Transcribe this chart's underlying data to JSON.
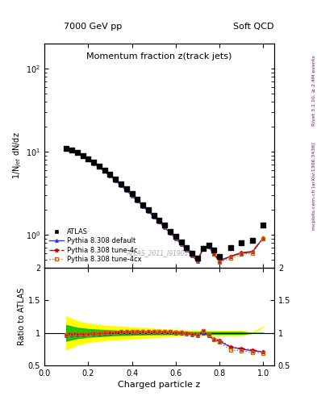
{
  "title_top_left": "7000 GeV pp",
  "title_top_right": "Soft QCD",
  "plot_title": "Momentum fraction z(track jets)",
  "ylabel_main": "1/N$_{jet}$ dN/dz",
  "ylabel_ratio": "Ratio to ATLAS",
  "xlabel": "Charged particle z",
  "right_label_top": "Rivet 3.1.10, ≥ 2.4M events",
  "right_label_bottom": "mcplots.cern.ch [arXiv:1306.3436]",
  "watermark": "ATLAS_2011_I919017",
  "z_values": [
    0.1,
    0.125,
    0.15,
    0.175,
    0.2,
    0.225,
    0.25,
    0.275,
    0.3,
    0.325,
    0.35,
    0.375,
    0.4,
    0.425,
    0.45,
    0.475,
    0.5,
    0.525,
    0.55,
    0.575,
    0.6,
    0.625,
    0.65,
    0.675,
    0.7,
    0.725,
    0.75,
    0.775,
    0.8,
    0.85,
    0.9,
    0.95,
    1.0
  ],
  "atlas_data": [
    11.0,
    10.5,
    9.8,
    9.0,
    8.2,
    7.4,
    6.7,
    6.0,
    5.3,
    4.7,
    4.1,
    3.6,
    3.1,
    2.7,
    2.3,
    2.0,
    1.7,
    1.5,
    1.3,
    1.1,
    0.95,
    0.82,
    0.7,
    0.6,
    0.52,
    0.68,
    0.75,
    0.65,
    0.55,
    0.7,
    0.8,
    0.85,
    1.3
  ],
  "pythia_default": [
    10.8,
    10.3,
    9.6,
    8.8,
    8.0,
    7.2,
    6.5,
    5.8,
    5.1,
    4.5,
    3.9,
    3.4,
    2.95,
    2.57,
    2.2,
    1.9,
    1.65,
    1.42,
    1.22,
    1.05,
    0.9,
    0.77,
    0.66,
    0.56,
    0.48,
    0.68,
    0.72,
    0.58,
    0.48,
    0.55,
    0.6,
    0.62,
    0.92
  ],
  "pythia_tune4c": [
    10.9,
    10.4,
    9.7,
    8.9,
    8.1,
    7.3,
    6.6,
    5.9,
    5.2,
    4.6,
    4.0,
    3.5,
    3.02,
    2.62,
    2.25,
    1.95,
    1.68,
    1.45,
    1.25,
    1.07,
    0.92,
    0.79,
    0.67,
    0.57,
    0.49,
    0.7,
    0.73,
    0.59,
    0.49,
    0.55,
    0.61,
    0.63,
    0.92
  ],
  "pythia_tune4cx": [
    10.9,
    10.4,
    9.7,
    8.9,
    8.1,
    7.3,
    6.6,
    5.9,
    5.2,
    4.6,
    4.0,
    3.5,
    3.02,
    2.62,
    2.25,
    1.95,
    1.68,
    1.45,
    1.25,
    1.07,
    0.92,
    0.79,
    0.67,
    0.57,
    0.49,
    0.7,
    0.73,
    0.58,
    0.47,
    0.52,
    0.58,
    0.6,
    0.9
  ],
  "ratio_default": [
    0.96,
    0.972,
    0.975,
    0.978,
    0.982,
    0.988,
    0.99,
    0.995,
    1.0,
    1.005,
    1.008,
    1.01,
    1.012,
    1.013,
    1.013,
    1.012,
    1.011,
    1.01,
    1.008,
    1.005,
    1.0,
    0.995,
    0.985,
    0.975,
    0.96,
    1.0,
    0.96,
    0.892,
    0.873,
    0.786,
    0.75,
    0.729,
    0.708
  ],
  "ratio_tune4c": [
    0.97,
    0.982,
    0.985,
    0.988,
    0.99,
    0.995,
    0.998,
    1.005,
    1.01,
    1.015,
    1.018,
    1.02,
    1.022,
    1.023,
    1.024,
    1.023,
    1.022,
    1.021,
    1.02,
    1.018,
    1.015,
    1.01,
    1.0,
    0.99,
    0.975,
    1.03,
    0.973,
    0.908,
    0.891,
    0.786,
    0.763,
    0.741,
    0.708
  ],
  "ratio_tune4cx": [
    0.97,
    0.982,
    0.985,
    0.988,
    0.99,
    0.995,
    0.998,
    1.005,
    1.01,
    1.015,
    1.018,
    1.02,
    1.022,
    1.023,
    1.024,
    1.023,
    1.022,
    1.021,
    1.02,
    1.018,
    1.015,
    1.01,
    1.0,
    0.99,
    0.975,
    1.03,
    0.973,
    0.892,
    0.855,
    0.743,
    0.725,
    0.706,
    0.692
  ],
  "yellow_band_lo": [
    0.75,
    0.78,
    0.82,
    0.84,
    0.86,
    0.87,
    0.88,
    0.89,
    0.895,
    0.9,
    0.905,
    0.91,
    0.915,
    0.92,
    0.925,
    0.93,
    0.935,
    0.94,
    0.945,
    0.95,
    0.955,
    0.96,
    0.965,
    0.965,
    0.965,
    0.965,
    0.965,
    0.965,
    0.965,
    0.965,
    0.965,
    1.0,
    1.1
  ],
  "yellow_band_hi": [
    1.25,
    1.22,
    1.18,
    1.16,
    1.14,
    1.13,
    1.12,
    1.11,
    1.105,
    1.1,
    1.095,
    1.09,
    1.085,
    1.08,
    1.075,
    1.07,
    1.065,
    1.06,
    1.055,
    1.05,
    1.045,
    1.04,
    1.035,
    1.035,
    1.035,
    1.035,
    1.035,
    1.035,
    1.035,
    1.035,
    1.035,
    1.0,
    1.1
  ],
  "green_band_lo": [
    0.88,
    0.9,
    0.92,
    0.93,
    0.94,
    0.945,
    0.95,
    0.955,
    0.96,
    0.965,
    0.968,
    0.97,
    0.972,
    0.975,
    0.977,
    0.978,
    0.979,
    0.98,
    0.981,
    0.982,
    0.983,
    0.984,
    0.985,
    0.985,
    0.985,
    0.985,
    0.985,
    0.985,
    0.985,
    0.985,
    0.985,
    1.0,
    1.0
  ],
  "green_band_hi": [
    1.12,
    1.1,
    1.08,
    1.07,
    1.06,
    1.055,
    1.05,
    1.045,
    1.04,
    1.035,
    1.032,
    1.03,
    1.028,
    1.025,
    1.023,
    1.022,
    1.021,
    1.02,
    1.019,
    1.018,
    1.017,
    1.016,
    1.015,
    1.015,
    1.015,
    1.015,
    1.015,
    1.015,
    1.015,
    1.015,
    1.015,
    1.0,
    1.0
  ],
  "color_atlas": "#000000",
  "color_default": "#3333ff",
  "color_tune4c": "#cc0000",
  "color_tune4cx": "#cc6600",
  "color_yellow": "#ffff00",
  "color_green": "#00bb00",
  "ylim_main": [
    0.4,
    200
  ],
  "ylim_ratio": [
    0.5,
    2.0
  ],
  "xlim": [
    0.0,
    1.05
  ],
  "yticks_ratio": [
    0.5,
    1.0,
    1.5,
    2.0
  ],
  "ytick_labels_ratio": [
    "0.5",
    "1",
    "1.5",
    "2"
  ]
}
